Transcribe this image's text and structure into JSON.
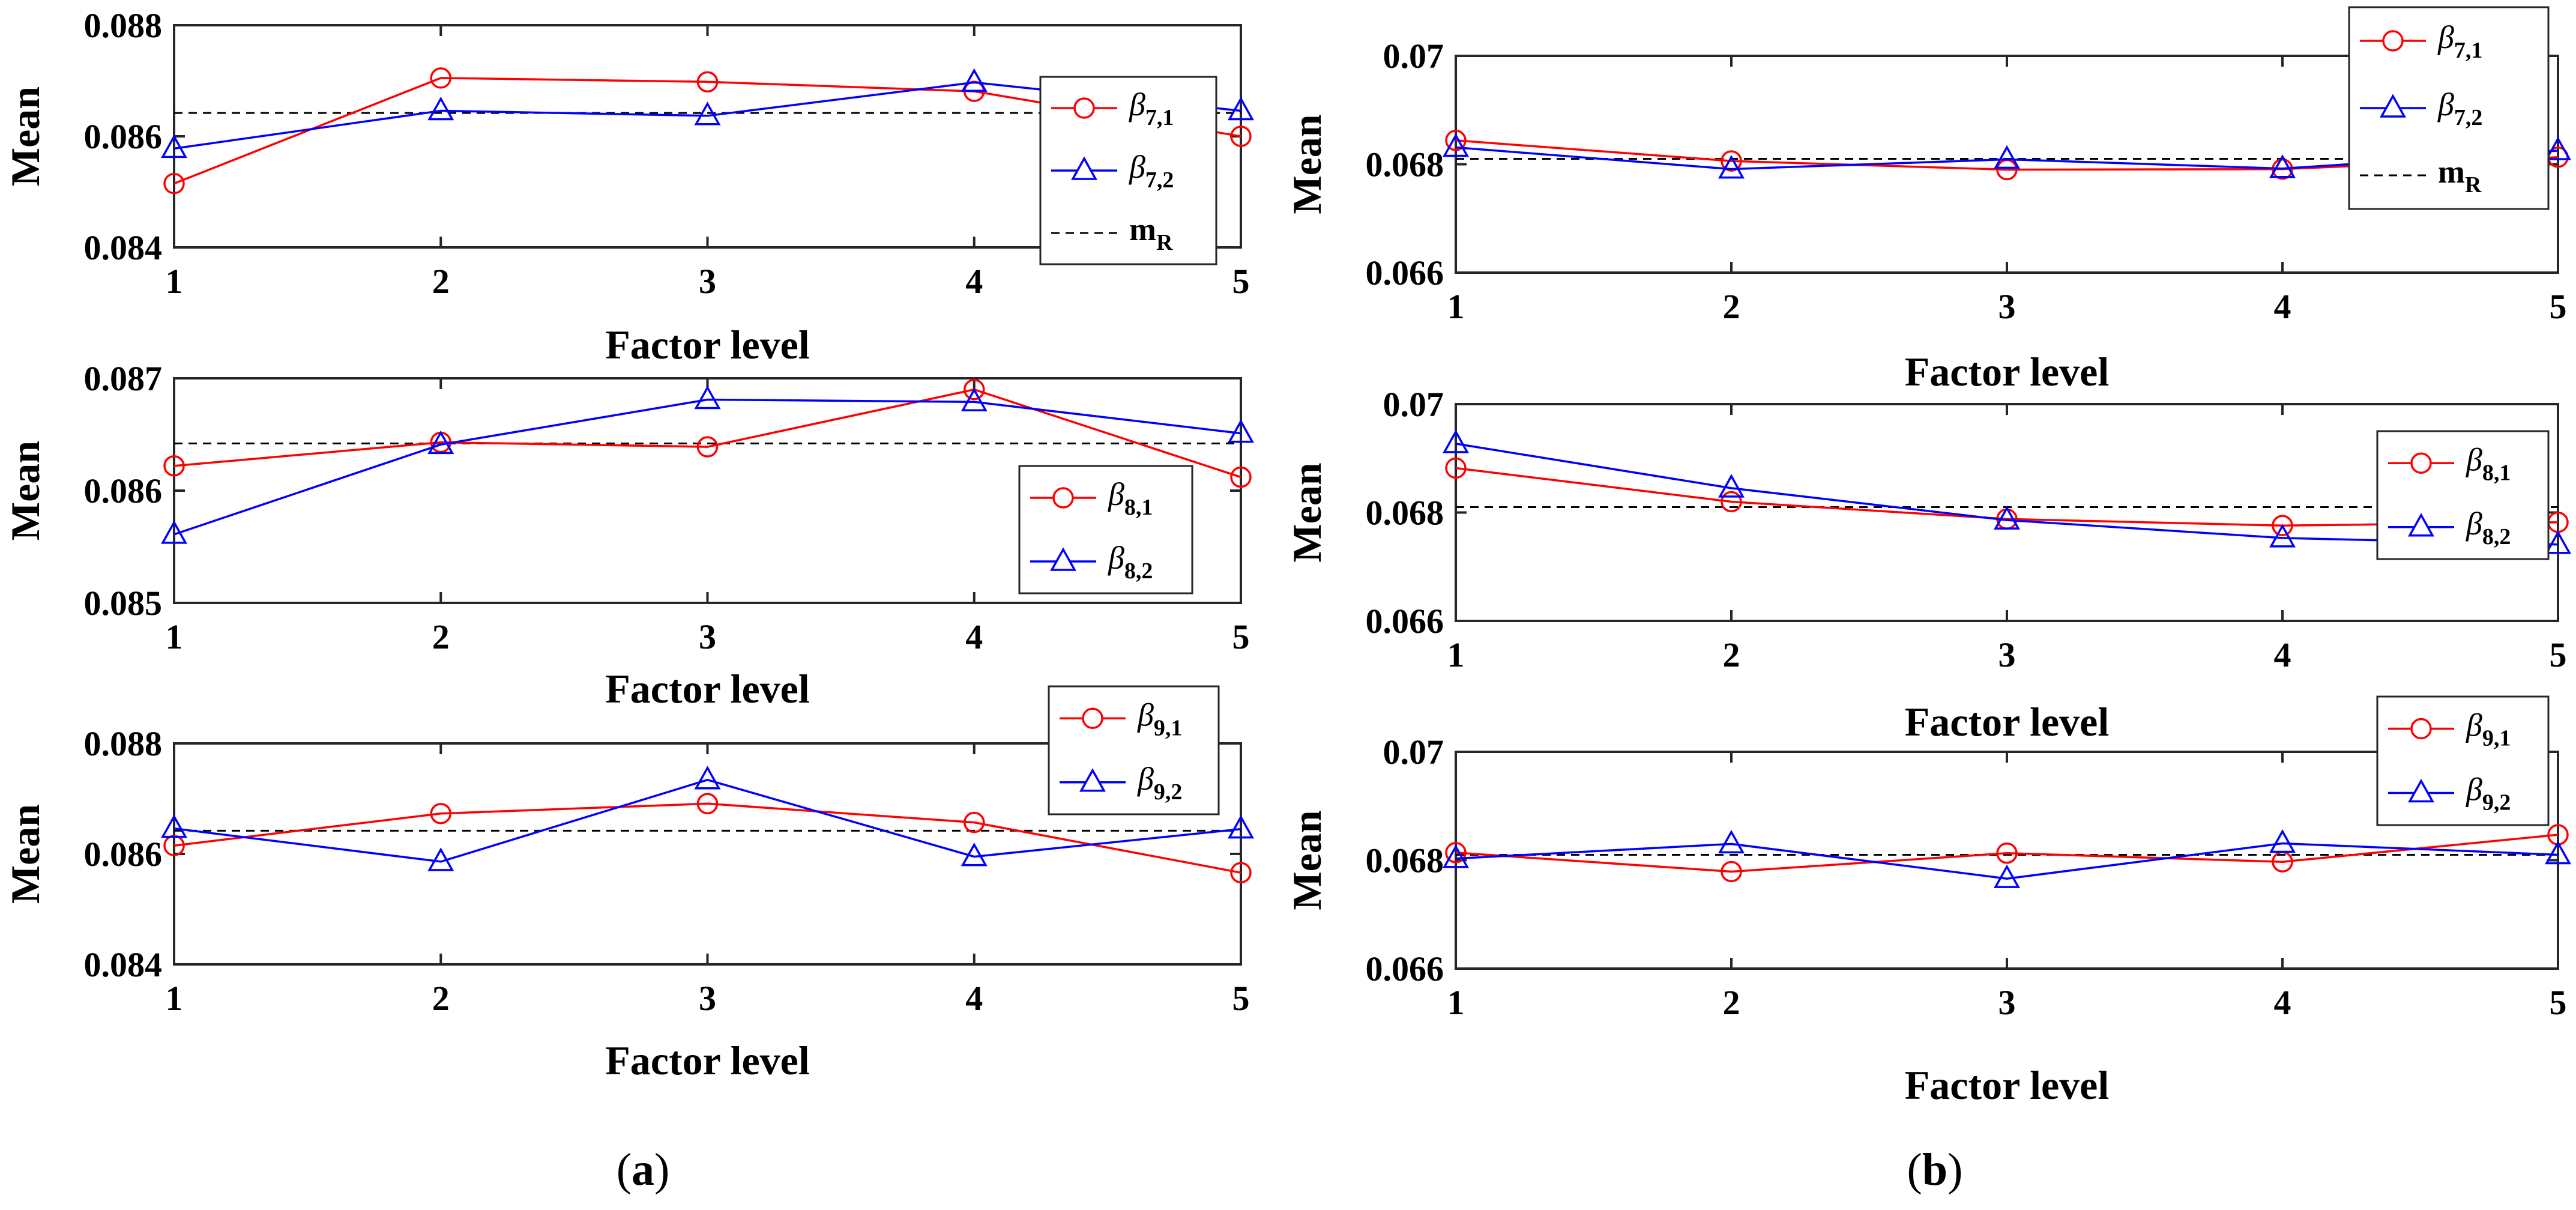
{
  "figure": {
    "subfigure_labels": [
      {
        "open": "(",
        "letter": "a",
        "close": ")"
      },
      {
        "open": "(",
        "letter": "b",
        "close": ")"
      }
    ]
  },
  "colors": {
    "series1": "#ff0000",
    "series2": "#0000ff",
    "reference": "#000000"
  },
  "chart_data": [
    {
      "type": "line",
      "panel": "a-top",
      "xlabel": "Factor level",
      "ylabel": "Mean",
      "x": [
        1,
        2,
        3,
        4,
        5
      ],
      "xticks": [
        "1",
        "2",
        "3",
        "4",
        "5"
      ],
      "xlim": [
        1,
        5
      ],
      "ylim": [
        0.084,
        0.088
      ],
      "yticks": [
        {
          "v": 0.084,
          "t": "0.084"
        },
        {
          "v": 0.086,
          "t": "0.086"
        },
        {
          "v": 0.088,
          "t": "0.088"
        }
      ],
      "reference": {
        "name": "m",
        "sub": "R",
        "value": 0.08642
      },
      "legend_position": "right",
      "series": [
        {
          "symbol": "β",
          "sub": "7,1",
          "marker": "circle",
          "color": "#ff0000",
          "values": [
            0.08515,
            0.08705,
            0.08698,
            0.08681,
            0.086
          ]
        },
        {
          "symbol": "β",
          "sub": "7,2",
          "marker": "triangle",
          "color": "#0000ff",
          "values": [
            0.08578,
            0.08646,
            0.08637,
            0.08697,
            0.08646
          ]
        }
      ]
    },
    {
      "type": "line",
      "panel": "a-middle",
      "xlabel": "Factor level",
      "ylabel": "Mean",
      "x": [
        1,
        2,
        3,
        4,
        5
      ],
      "xticks": [
        "1",
        "2",
        "3",
        "4",
        "5"
      ],
      "xlim": [
        1,
        5
      ],
      "ylim": [
        0.085,
        0.087
      ],
      "yticks": [
        {
          "v": 0.085,
          "t": "0.085"
        },
        {
          "v": 0.086,
          "t": "0.086"
        },
        {
          "v": 0.087,
          "t": "0.087"
        }
      ],
      "reference": {
        "value": 0.08642
      },
      "legend_position": "bottom-right",
      "series": [
        {
          "symbol": "β",
          "sub": "8,1",
          "marker": "circle",
          "color": "#ff0000",
          "values": [
            0.08622,
            0.08643,
            0.08639,
            0.0869,
            0.08612
          ]
        },
        {
          "symbol": "β",
          "sub": "8,2",
          "marker": "triangle",
          "color": "#0000ff",
          "values": [
            0.08561,
            0.08641,
            0.08681,
            0.08679,
            0.08651
          ]
        }
      ]
    },
    {
      "type": "line",
      "panel": "a-bottom",
      "xlabel": "Factor level",
      "ylabel": "Mean",
      "x": [
        1,
        2,
        3,
        4,
        5
      ],
      "xticks": [
        "1",
        "2",
        "3",
        "4",
        "5"
      ],
      "xlim": [
        1,
        5
      ],
      "ylim": [
        0.084,
        0.088
      ],
      "yticks": [
        {
          "v": 0.084,
          "t": "0.084"
        },
        {
          "v": 0.086,
          "t": "0.086"
        },
        {
          "v": 0.088,
          "t": "0.088"
        }
      ],
      "reference": {
        "value": 0.08642
      },
      "legend_position": "top-right",
      "series": [
        {
          "symbol": "β",
          "sub": "9,1",
          "marker": "circle",
          "color": "#ff0000",
          "values": [
            0.08615,
            0.08673,
            0.08691,
            0.08657,
            0.08566
          ]
        },
        {
          "symbol": "β",
          "sub": "9,2",
          "marker": "triangle",
          "color": "#0000ff",
          "values": [
            0.08646,
            0.08586,
            0.08734,
            0.08595,
            0.08645
          ]
        }
      ]
    },
    {
      "type": "line",
      "panel": "b-top",
      "xlabel": "Factor level",
      "ylabel": "Mean",
      "x": [
        1,
        2,
        3,
        4,
        5
      ],
      "xticks": [
        "1",
        "2",
        "3",
        "4",
        "5"
      ],
      "xlim": [
        1,
        5
      ],
      "ylim": [
        0.066,
        0.07
      ],
      "yticks": [
        {
          "v": 0.066,
          "t": "0.066"
        },
        {
          "v": 0.068,
          "t": "0.068"
        },
        {
          "v": 0.07,
          "t": "0.07"
        }
      ],
      "reference": {
        "name": "m",
        "sub": "R",
        "value": 0.0681
      },
      "legend_position": "top-right",
      "series": [
        {
          "symbol": "β",
          "sub": "7,1",
          "marker": "circle",
          "color": "#ff0000",
          "values": [
            0.06844,
            0.06806,
            0.0679,
            0.06791,
            0.06813
          ]
        },
        {
          "symbol": "β",
          "sub": "7,2",
          "marker": "triangle",
          "color": "#0000ff",
          "values": [
            0.06831,
            0.06791,
            0.06809,
            0.06792,
            0.06825
          ]
        }
      ]
    },
    {
      "type": "line",
      "panel": "b-middle",
      "xlabel": "Factor level",
      "ylabel": "Mean",
      "x": [
        1,
        2,
        3,
        4,
        5
      ],
      "xticks": [
        "1",
        "2",
        "3",
        "4",
        "5"
      ],
      "xlim": [
        1,
        5
      ],
      "ylim": [
        0.066,
        0.07
      ],
      "yticks": [
        {
          "v": 0.066,
          "t": "0.066"
        },
        {
          "v": 0.068,
          "t": "0.068"
        },
        {
          "v": 0.07,
          "t": "0.07"
        }
      ],
      "reference": {
        "value": 0.0681
      },
      "legend_position": "top-right",
      "series": [
        {
          "symbol": "β",
          "sub": "8,1",
          "marker": "circle",
          "color": "#ff0000",
          "values": [
            0.06882,
            0.0682,
            0.06788,
            0.06776,
            0.06782
          ]
        },
        {
          "symbol": "β",
          "sub": "8,2",
          "marker": "triangle",
          "color": "#0000ff",
          "values": [
            0.06927,
            0.06845,
            0.06786,
            0.06753,
            0.06741
          ]
        }
      ]
    },
    {
      "type": "line",
      "panel": "b-bottom",
      "xlabel": "Factor level",
      "ylabel": "Mean",
      "x": [
        1,
        2,
        3,
        4,
        5
      ],
      "xticks": [
        "1",
        "2",
        "3",
        "4",
        "5"
      ],
      "xlim": [
        1,
        5
      ],
      "ylim": [
        0.066,
        0.07
      ],
      "yticks": [
        {
          "v": 0.066,
          "t": "0.066"
        },
        {
          "v": 0.068,
          "t": "0.068"
        },
        {
          "v": 0.07,
          "t": "0.07"
        }
      ],
      "reference": {
        "value": 0.0681
      },
      "legend_position": "top-right",
      "series": [
        {
          "symbol": "β",
          "sub": "9,1",
          "marker": "circle",
          "color": "#ff0000",
          "values": [
            0.06814,
            0.06779,
            0.06813,
            0.06797,
            0.06847
          ]
        },
        {
          "symbol": "β",
          "sub": "9,2",
          "marker": "triangle",
          "color": "#0000ff",
          "values": [
            0.06803,
            0.0683,
            0.06766,
            0.06831,
            0.0681
          ]
        }
      ]
    }
  ]
}
